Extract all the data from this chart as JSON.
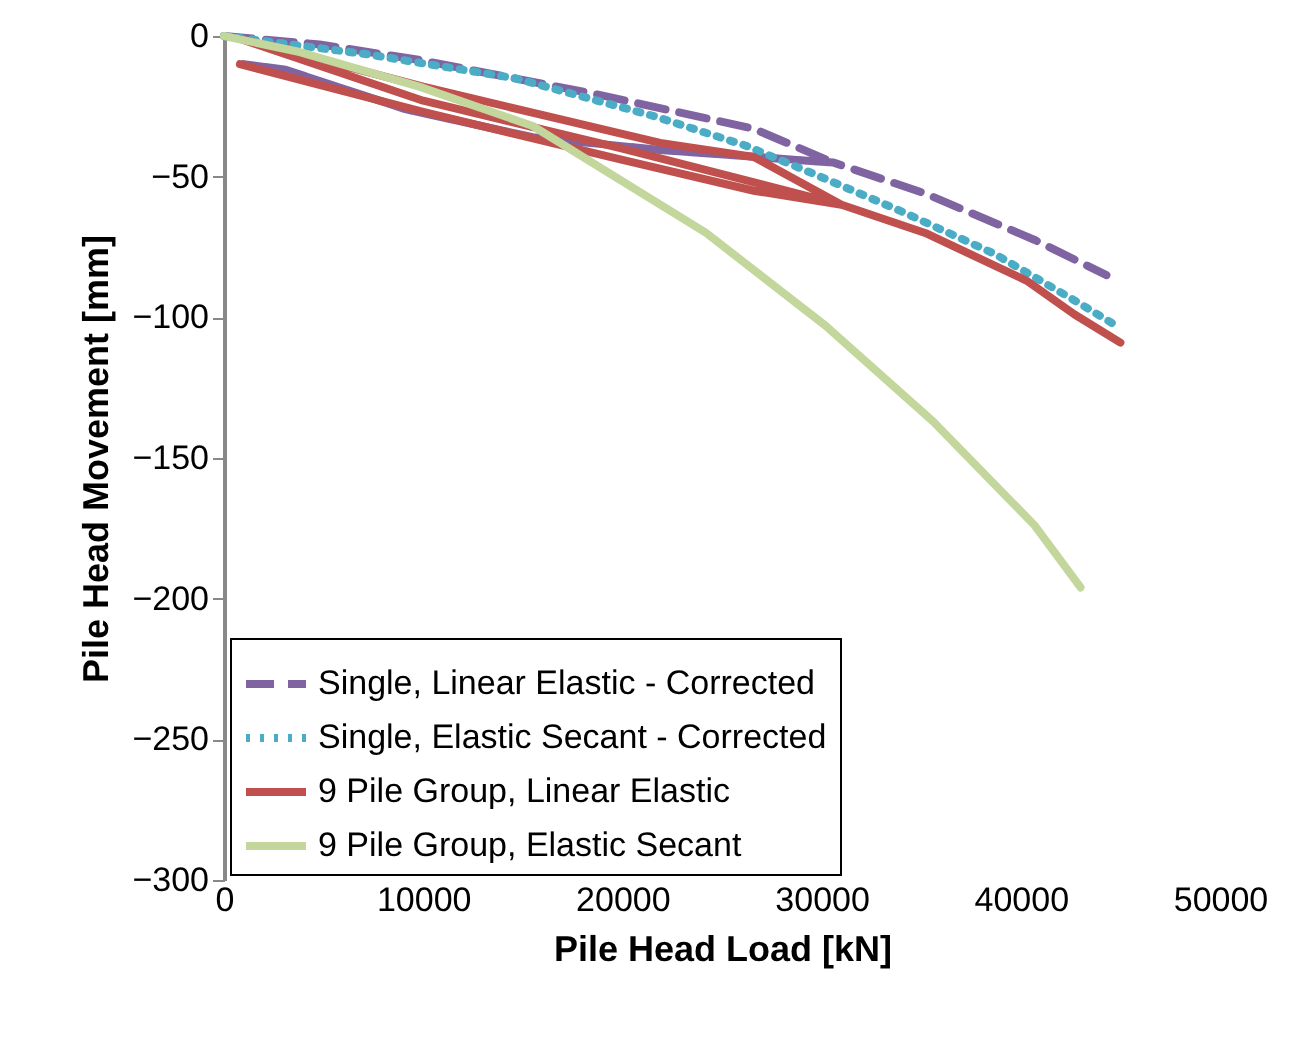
{
  "chart_data": {
    "type": "line",
    "xlabel": "Pile Head Load [kN]",
    "ylabel": "Pile Head Movement [mm]",
    "xlim": [
      0,
      50000
    ],
    "xticks": [
      0,
      10000,
      20000,
      30000,
      40000,
      50000
    ],
    "ylim": [
      -300,
      0
    ],
    "yticks": [
      -300,
      -250,
      -200,
      -150,
      -100,
      -50,
      0
    ],
    "grid": false,
    "legend": "bottom left",
    "marker": "none",
    "series": [
      {
        "name": "Single, Linear Elastic - Corrected",
        "color": "#8064a2",
        "line_style": "dashed",
        "x": [
          0,
          4800,
          9800,
          18900,
          26600,
          30600,
          21900,
          15500,
          9100,
          3100,
          1000,
          3100,
          9100,
          15500,
          21900,
          30600,
          35200,
          40700,
          44300
        ],
        "values": [
          0,
          -3,
          -8.5,
          -21,
          -33,
          -45,
          -40.5,
          -36,
          -26,
          -12,
          -10,
          -12,
          -26,
          -36,
          -40.5,
          -45,
          -56,
          -72.5,
          -85
        ]
      },
      {
        "name": "Single, Elastic Secant - Corrected",
        "color": "#4bacc6",
        "line_style": "dotted",
        "x": [
          0,
          7100,
          14600,
          21600,
          26200,
          29600,
          33900,
          38700,
          42700,
          44800
        ],
        "values": [
          0,
          -6.4,
          -15,
          -28.5,
          -39,
          -49,
          -62,
          -77.5,
          -94,
          -103
        ]
      },
      {
        "name": "9 Pile Group, Linear Elastic",
        "color": "#c0504d",
        "line_style": "solid",
        "x": [
          800,
          10000,
          20000,
          26600,
          31000,
          26600,
          21900,
          10000,
          800,
          10000,
          20000,
          31000,
          35200,
          40300,
          42700,
          45000
        ],
        "values": [
          -10,
          -27,
          -44,
          -55,
          -60,
          -43,
          -38,
          -18,
          -1,
          -23,
          -40,
          -60,
          -70,
          -87,
          -99,
          -109
        ]
      },
      {
        "name": "9 Pile Group, Elastic Secant",
        "color": "#c3d69b",
        "line_style": "solid",
        "x": [
          0,
          3800,
          9800,
          15500,
          24200,
          30200,
          35600,
          40700,
          43000
        ],
        "values": [
          0,
          -5.7,
          -18,
          -32,
          -70,
          -103,
          -137,
          -174,
          -196
        ]
      }
    ]
  }
}
